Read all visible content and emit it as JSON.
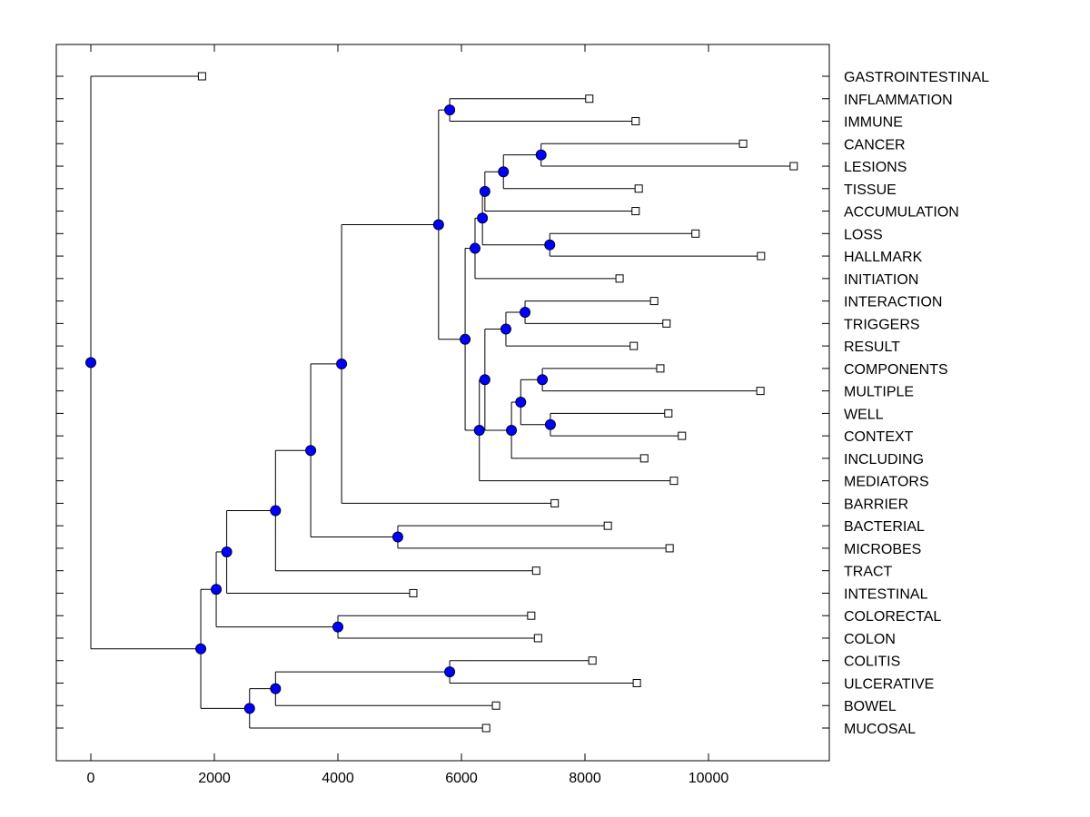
{
  "chart_data": {
    "type": "dendrogram",
    "title": "",
    "xlabel": "",
    "ylabel": "",
    "xlim": [
      -550,
      11950
    ],
    "x_ticks": [
      0,
      2000,
      4000,
      6000,
      8000,
      10000
    ],
    "x_tick_labels": [
      "0",
      "2000",
      "4000",
      "6000",
      "8000",
      "10000"
    ],
    "grid": false,
    "legend": "none",
    "colors": {
      "node_fill": "#0000ff",
      "node_stroke": "#000033",
      "line": "#000000",
      "leaf_fill": "#ffffff"
    },
    "leaves": [
      {
        "label": "GASTROINTESTINAL",
        "value": 1800
      },
      {
        "label": "INFLAMMATION",
        "value": 8070
      },
      {
        "label": "IMMUNE",
        "value": 8820
      },
      {
        "label": "CANCER",
        "value": 10560
      },
      {
        "label": "LESIONS",
        "value": 11380
      },
      {
        "label": "TISSUE",
        "value": 8870
      },
      {
        "label": "ACCUMULATION",
        "value": 8820
      },
      {
        "label": "LOSS",
        "value": 9790
      },
      {
        "label": "HALLMARK",
        "value": 10850
      },
      {
        "label": "INITIATION",
        "value": 8560
      },
      {
        "label": "INTERACTION",
        "value": 9120
      },
      {
        "label": "TRIGGERS",
        "value": 9320
      },
      {
        "label": "RESULT",
        "value": 8790
      },
      {
        "label": "COMPONENTS",
        "value": 9220
      },
      {
        "label": "MULTIPLE",
        "value": 10840
      },
      {
        "label": "WELL",
        "value": 9350
      },
      {
        "label": "CONTEXT",
        "value": 9570
      },
      {
        "label": "INCLUDING",
        "value": 8960
      },
      {
        "label": "MEDIATORS",
        "value": 9440
      },
      {
        "label": "BARRIER",
        "value": 7510
      },
      {
        "label": "BACTERIAL",
        "value": 8370
      },
      {
        "label": "MICROBES",
        "value": 9370
      },
      {
        "label": "TRACT",
        "value": 7210
      },
      {
        "label": "INTESTINAL",
        "value": 5220
      },
      {
        "label": "COLORECTAL",
        "value": 7130
      },
      {
        "label": "COLON",
        "value": 7240
      },
      {
        "label": "COLITIS",
        "value": 8120
      },
      {
        "label": "ULCERATIVE",
        "value": 8840
      },
      {
        "label": "BOWEL",
        "value": 6560
      },
      {
        "label": "MUCOSAL",
        "value": 6400
      }
    ],
    "nodes": [
      {
        "id": "n_ii",
        "value": 5810,
        "children": [
          "L1",
          "L2"
        ]
      },
      {
        "id": "n_cl",
        "value": 7290,
        "children": [
          "L3",
          "L4"
        ]
      },
      {
        "id": "n_clt",
        "value": 6680,
        "children": [
          "n_cl",
          "L5"
        ]
      },
      {
        "id": "n_clta",
        "value": 6380,
        "children": [
          "n_clt",
          "L6"
        ]
      },
      {
        "id": "n_lh",
        "value": 7430,
        "children": [
          "L7",
          "L8"
        ]
      },
      {
        "id": "n_x",
        "value": 6340,
        "children": [
          "n_clta",
          "n_lh"
        ]
      },
      {
        "id": "n_top2",
        "value": 6220,
        "children": [
          "n_x",
          "L9"
        ]
      },
      {
        "id": "n_it",
        "value": 7030,
        "children": [
          "L10",
          "L11"
        ]
      },
      {
        "id": "n_itr",
        "value": 6720,
        "children": [
          "n_it",
          "L12"
        ]
      },
      {
        "id": "n_cm",
        "value": 7310,
        "children": [
          "L13",
          "L14"
        ]
      },
      {
        "id": "n_wc",
        "value": 7440,
        "children": [
          "L15",
          "L16"
        ]
      },
      {
        "id": "n_cmw",
        "value": 6960,
        "children": [
          "n_cm",
          "n_wc"
        ]
      },
      {
        "id": "n_cw",
        "value": 6810,
        "children": [
          "n_cmw",
          "L17"
        ]
      },
      {
        "id": "n_A",
        "value": 6380,
        "children": [
          "n_itr",
          "n_cw"
        ]
      },
      {
        "id": "n_B",
        "value": 6290,
        "children": [
          "n_A",
          "L18"
        ]
      },
      {
        "id": "n_mid",
        "value": 6060,
        "children": [
          "n_top2",
          "n_B"
        ]
      },
      {
        "id": "n_up",
        "value": 5630,
        "children": [
          "n_ii",
          "n_mid"
        ]
      },
      {
        "id": "n_e",
        "value": 4060,
        "children": [
          "n_up",
          "L19"
        ]
      },
      {
        "id": "n_bm",
        "value": 4970,
        "children": [
          "L20",
          "L21"
        ]
      },
      {
        "id": "n_d",
        "value": 3560,
        "children": [
          "n_e",
          "n_bm"
        ]
      },
      {
        "id": "n_c",
        "value": 2990,
        "children": [
          "n_d",
          "L22"
        ]
      },
      {
        "id": "n_b",
        "value": 2200,
        "children": [
          "n_c",
          "L23"
        ]
      },
      {
        "id": "n_cc",
        "value": 4000,
        "children": [
          "L24",
          "L25"
        ]
      },
      {
        "id": "n_a",
        "value": 2030,
        "children": [
          "n_b",
          "n_cc"
        ]
      },
      {
        "id": "n_colul",
        "value": 5810,
        "children": [
          "L26",
          "L27"
        ]
      },
      {
        "id": "n_cu",
        "value": 2990,
        "children": [
          "n_colul",
          "L28"
        ]
      },
      {
        "id": "n_bowel",
        "value": 2570,
        "children": [
          "n_cu",
          "L29"
        ]
      },
      {
        "id": "n_low",
        "value": 1780,
        "children": [
          "n_a",
          "n_bowel"
        ]
      },
      {
        "id": "n_root",
        "value": 0,
        "children": [
          "L0",
          "n_low"
        ]
      }
    ]
  }
}
